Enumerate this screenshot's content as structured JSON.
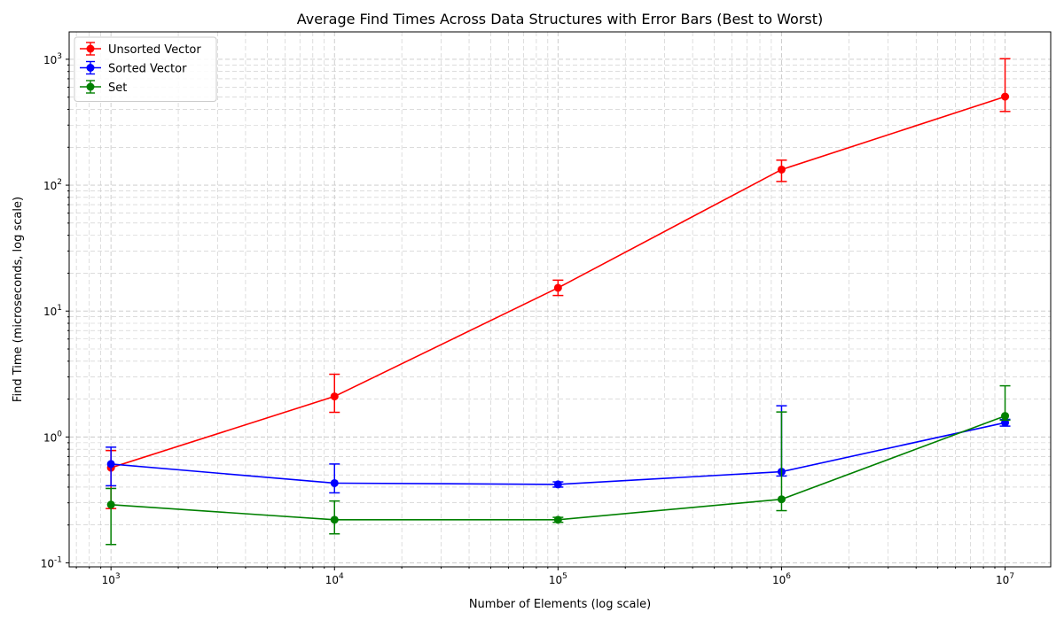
{
  "chart_data": {
    "type": "line",
    "title": "Average Find Times Across Data Structures with Error Bars (Best to Worst)",
    "xlabel": "Number of Elements (log scale)",
    "ylabel": "Find Time (microseconds, log scale)",
    "xscale": "log",
    "yscale": "log",
    "xlim": [
      650,
      16000000
    ],
    "ylim": [
      0.093,
      1650
    ],
    "grid": true,
    "legend_position": "top-left",
    "x": [
      1000,
      10000,
      100000,
      1000000,
      10000000
    ],
    "x_tick_labels": [
      "10^3",
      "10^4",
      "10^5",
      "10^6",
      "10^7"
    ],
    "y_tick_values": [
      0.1,
      1,
      10,
      100,
      1000
    ],
    "y_tick_labels": [
      "10^-1",
      "10^0",
      "10^1",
      "10^2",
      "10^3"
    ],
    "series": [
      {
        "name": "Unsorted Vector",
        "color": "#ff0000",
        "values": [
          0.57,
          2.1,
          15.3,
          133,
          505
        ],
        "error_low": [
          0.27,
          1.57,
          13.3,
          107,
          385
        ],
        "error_high": [
          0.78,
          3.15,
          17.6,
          158,
          1010
        ]
      },
      {
        "name": "Sorted Vector",
        "color": "#0000ff",
        "values": [
          0.61,
          0.43,
          0.42,
          0.53,
          1.3
        ],
        "error_low": [
          0.41,
          0.36,
          0.4,
          0.49,
          1.22
        ],
        "error_high": [
          0.83,
          0.61,
          0.44,
          1.77,
          1.38
        ]
      },
      {
        "name": "Set",
        "color": "#008000",
        "values": [
          0.29,
          0.22,
          0.22,
          0.32,
          1.47
        ],
        "error_low": [
          0.14,
          0.17,
          0.21,
          0.26,
          1.36
        ],
        "error_high": [
          0.39,
          0.31,
          0.23,
          1.58,
          2.55
        ]
      }
    ]
  }
}
